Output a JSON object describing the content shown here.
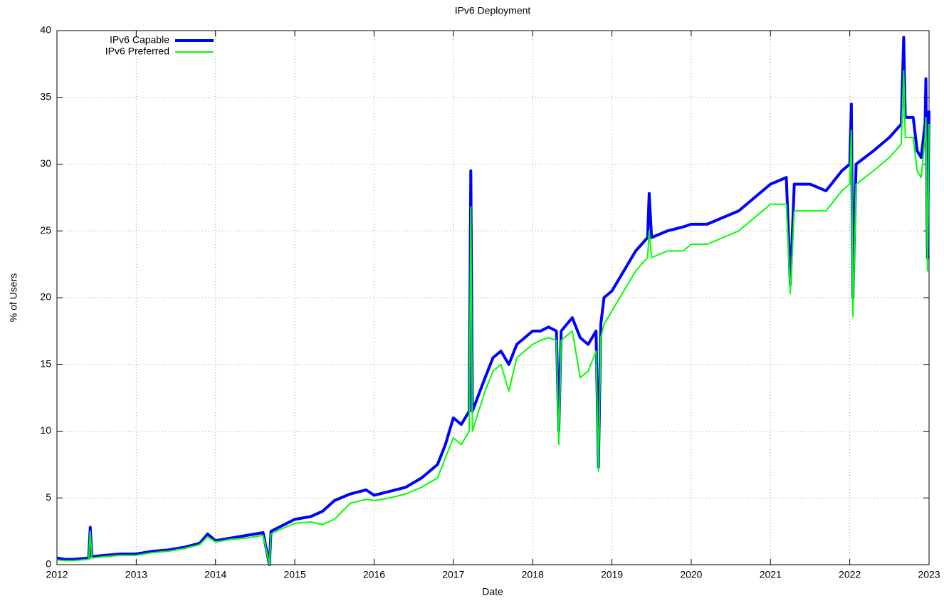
{
  "chart_data": {
    "type": "line",
    "title": "IPv6 Deployment",
    "x_label": "Date",
    "y_label": "% of Users",
    "x": [
      2012.0,
      2012.1,
      2012.2,
      2012.3,
      2012.4,
      2012.42,
      2012.44,
      2012.6,
      2012.8,
      2013.0,
      2013.2,
      2013.4,
      2013.6,
      2013.8,
      2013.9,
      2014.0,
      2014.2,
      2014.4,
      2014.6,
      2014.68,
      2014.7,
      2014.8,
      2015.0,
      2015.2,
      2015.35,
      2015.5,
      2015.7,
      2015.9,
      2016.0,
      2016.2,
      2016.4,
      2016.6,
      2016.8,
      2016.9,
      2017.0,
      2017.1,
      2017.2,
      2017.22,
      2017.24,
      2017.4,
      2017.5,
      2017.6,
      2017.7,
      2017.8,
      2017.9,
      2018.0,
      2018.1,
      2018.2,
      2018.3,
      2018.33,
      2018.36,
      2018.5,
      2018.6,
      2018.7,
      2018.8,
      2018.83,
      2018.86,
      2018.9,
      2019.0,
      2019.1,
      2019.2,
      2019.3,
      2019.45,
      2019.47,
      2019.5,
      2019.7,
      2019.9,
      2020.0,
      2020.2,
      2020.4,
      2020.6,
      2020.8,
      2021.0,
      2021.2,
      2021.25,
      2021.3,
      2021.5,
      2021.7,
      2021.9,
      2022.0,
      2022.02,
      2022.04,
      2022.08,
      2022.3,
      2022.5,
      2022.65,
      2022.68,
      2022.7,
      2022.8,
      2022.85,
      2022.9,
      2022.95,
      2022.96,
      2022.98,
      2023.0
    ],
    "series": [
      {
        "name": "IPv6 Capable",
        "color": "#0000ff",
        "values": [
          0.5,
          0.4,
          0.4,
          0.45,
          0.5,
          2.8,
          0.6,
          0.7,
          0.8,
          0.8,
          1.0,
          1.1,
          1.3,
          1.6,
          2.3,
          1.8,
          2.0,
          2.2,
          2.4,
          0,
          2.5,
          2.8,
          3.4,
          3.6,
          4.0,
          4.8,
          5.3,
          5.6,
          5.2,
          5.5,
          5.8,
          6.5,
          7.5,
          9.0,
          11.0,
          10.5,
          11.5,
          29.5,
          11.5,
          14.0,
          15.5,
          16.0,
          15.0,
          16.5,
          17.0,
          17.5,
          17.5,
          17.8,
          17.5,
          10.0,
          17.5,
          18.5,
          17.0,
          16.5,
          17.5,
          7.3,
          18.0,
          20.0,
          20.5,
          21.5,
          22.5,
          23.5,
          24.5,
          27.8,
          24.5,
          25.0,
          25.3,
          25.5,
          25.5,
          26.0,
          26.5,
          27.5,
          28.5,
          29.0,
          21.0,
          28.5,
          28.5,
          28.0,
          29.5,
          30.0,
          34.5,
          20.0,
          30.0,
          31.0,
          32.0,
          33.0,
          39.5,
          33.5,
          33.5,
          31.0,
          30.5,
          33.0,
          36.4,
          23.0,
          34.0
        ]
      },
      {
        "name": "IPv6 Preferred",
        "color": "#00ff00",
        "values": [
          0.35,
          0.3,
          0.3,
          0.35,
          0.4,
          2.5,
          0.5,
          0.6,
          0.7,
          0.7,
          0.9,
          1.0,
          1.2,
          1.5,
          2.1,
          1.7,
          1.9,
          2.0,
          2.2,
          0,
          2.3,
          2.6,
          3.1,
          3.2,
          3.0,
          3.4,
          4.6,
          4.9,
          4.8,
          5.0,
          5.3,
          5.8,
          6.5,
          8.0,
          9.5,
          9.0,
          10.0,
          26.8,
          10.0,
          13.0,
          14.5,
          15.0,
          13.0,
          15.5,
          16.0,
          16.5,
          16.8,
          17.0,
          16.8,
          9.0,
          16.8,
          17.5,
          14.0,
          14.5,
          16.0,
          7.0,
          17.0,
          18.0,
          19.0,
          20.0,
          21.0,
          22.0,
          23.0,
          25.0,
          23.0,
          23.5,
          23.5,
          24.0,
          24.0,
          24.5,
          25.0,
          26.0,
          27.0,
          27.0,
          20.3,
          26.5,
          26.5,
          26.5,
          28.0,
          28.5,
          32.5,
          18.6,
          28.5,
          29.5,
          30.5,
          31.5,
          37.0,
          32.0,
          32.0,
          29.5,
          29.0,
          32.0,
          33.5,
          22.0,
          33.0
        ]
      }
    ],
    "xlim": [
      2012,
      2023
    ],
    "xticks": [
      2012,
      2013,
      2014,
      2015,
      2016,
      2017,
      2018,
      2019,
      2020,
      2021,
      2022,
      2023
    ],
    "ylim": [
      0,
      40
    ],
    "yticks": [
      0,
      5,
      10,
      15,
      20,
      25,
      30,
      35,
      40
    ],
    "grid": true,
    "legend": "upper left"
  }
}
